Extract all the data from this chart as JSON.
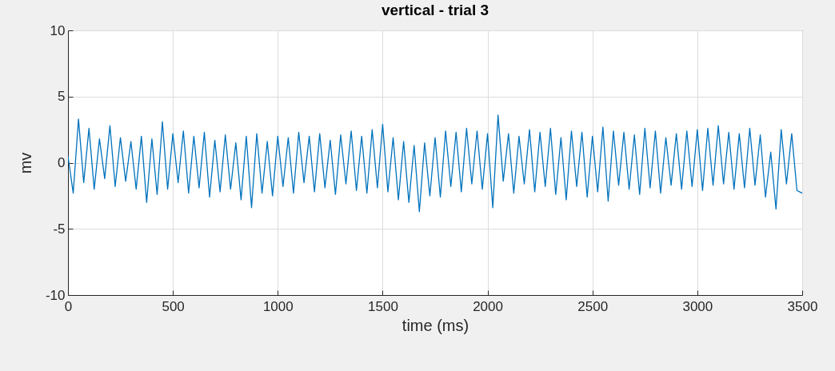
{
  "chart_data": {
    "type": "line",
    "title": "vertical - trial 3",
    "xlabel": "time (ms)",
    "ylabel": "mv",
    "x": [
      0,
      25,
      50,
      75,
      100,
      125,
      150,
      175,
      200,
      225,
      250,
      275,
      300,
      325,
      350,
      375,
      400,
      425,
      450,
      475,
      500,
      525,
      550,
      575,
      600,
      625,
      650,
      675,
      700,
      725,
      750,
      775,
      800,
      825,
      850,
      875,
      900,
      925,
      950,
      975,
      1000,
      1025,
      1050,
      1075,
      1100,
      1125,
      1150,
      1175,
      1200,
      1225,
      1250,
      1275,
      1300,
      1325,
      1350,
      1375,
      1400,
      1425,
      1450,
      1475,
      1500,
      1525,
      1550,
      1575,
      1600,
      1625,
      1650,
      1675,
      1700,
      1725,
      1750,
      1775,
      1800,
      1825,
      1850,
      1875,
      1900,
      1925,
      1950,
      1975,
      2000,
      2025,
      2050,
      2075,
      2100,
      2125,
      2150,
      2175,
      2200,
      2225,
      2250,
      2275,
      2300,
      2325,
      2350,
      2375,
      2400,
      2425,
      2450,
      2475,
      2500,
      2525,
      2550,
      2575,
      2600,
      2625,
      2650,
      2675,
      2700,
      2725,
      2750,
      2775,
      2800,
      2825,
      2850,
      2875,
      2900,
      2925,
      2950,
      2975,
      3000,
      3025,
      3050,
      3075,
      3100,
      3125,
      3150,
      3175,
      3200,
      3225,
      3250,
      3275,
      3300,
      3325,
      3350,
      3375,
      3400,
      3425,
      3450,
      3475,
      3500
    ],
    "series": [
      {
        "color": "#0072bd",
        "values": [
          0.5,
          -2.3,
          3.3,
          -1.5,
          2.6,
          -2.0,
          1.8,
          -1.2,
          2.8,
          -1.8,
          1.9,
          -1.4,
          1.6,
          -2.0,
          2.0,
          -3.0,
          1.8,
          -2.4,
          3.1,
          -2.0,
          2.2,
          -1.5,
          2.4,
          -2.3,
          2.0,
          -1.9,
          2.3,
          -2.6,
          1.7,
          -2.2,
          2.1,
          -2.0,
          1.5,
          -2.8,
          2.0,
          -3.4,
          2.2,
          -2.3,
          1.6,
          -2.5,
          2.0,
          -1.8,
          1.9,
          -2.3,
          2.3,
          -1.5,
          2.0,
          -2.2,
          2.2,
          -1.9,
          1.7,
          -2.4,
          2.1,
          -1.6,
          2.4,
          -2.1,
          2.0,
          -2.3,
          2.5,
          -1.9,
          2.9,
          -2.2,
          1.9,
          -2.8,
          1.6,
          -3.0,
          1.3,
          -3.7,
          1.5,
          -2.5,
          1.9,
          -2.6,
          2.4,
          -1.8,
          2.3,
          -2.2,
          2.6,
          -1.6,
          2.4,
          -2.0,
          2.2,
          -3.4,
          3.6,
          -1.4,
          2.2,
          -2.3,
          2.0,
          -1.6,
          2.5,
          -2.2,
          2.3,
          -1.8,
          2.6,
          -2.4,
          1.9,
          -2.8,
          2.4,
          -1.8,
          2.3,
          -2.6,
          2.0,
          -2.2,
          2.7,
          -2.9,
          2.4,
          -1.7,
          2.3,
          -2.0,
          2.1,
          -2.4,
          2.6,
          -1.9,
          2.4,
          -2.3,
          1.9,
          -1.7,
          2.2,
          -2.0,
          2.4,
          -1.8,
          2.5,
          -2.1,
          2.6,
          -1.7,
          2.8,
          -1.6,
          2.3,
          -2.0,
          2.2,
          -1.9,
          2.6,
          -1.7,
          2.1,
          -2.6,
          0.8,
          -3.5,
          2.5,
          -1.6,
          2.2,
          -2.1,
          -2.3
        ]
      }
    ],
    "xlim": [
      0,
      3500
    ],
    "xticks": [
      0,
      500,
      1000,
      1500,
      2000,
      2500,
      3000,
      3500
    ],
    "ylim": [
      -10,
      10
    ],
    "yticks": [
      -10,
      -5,
      0,
      5,
      10
    ],
    "grid": true
  }
}
